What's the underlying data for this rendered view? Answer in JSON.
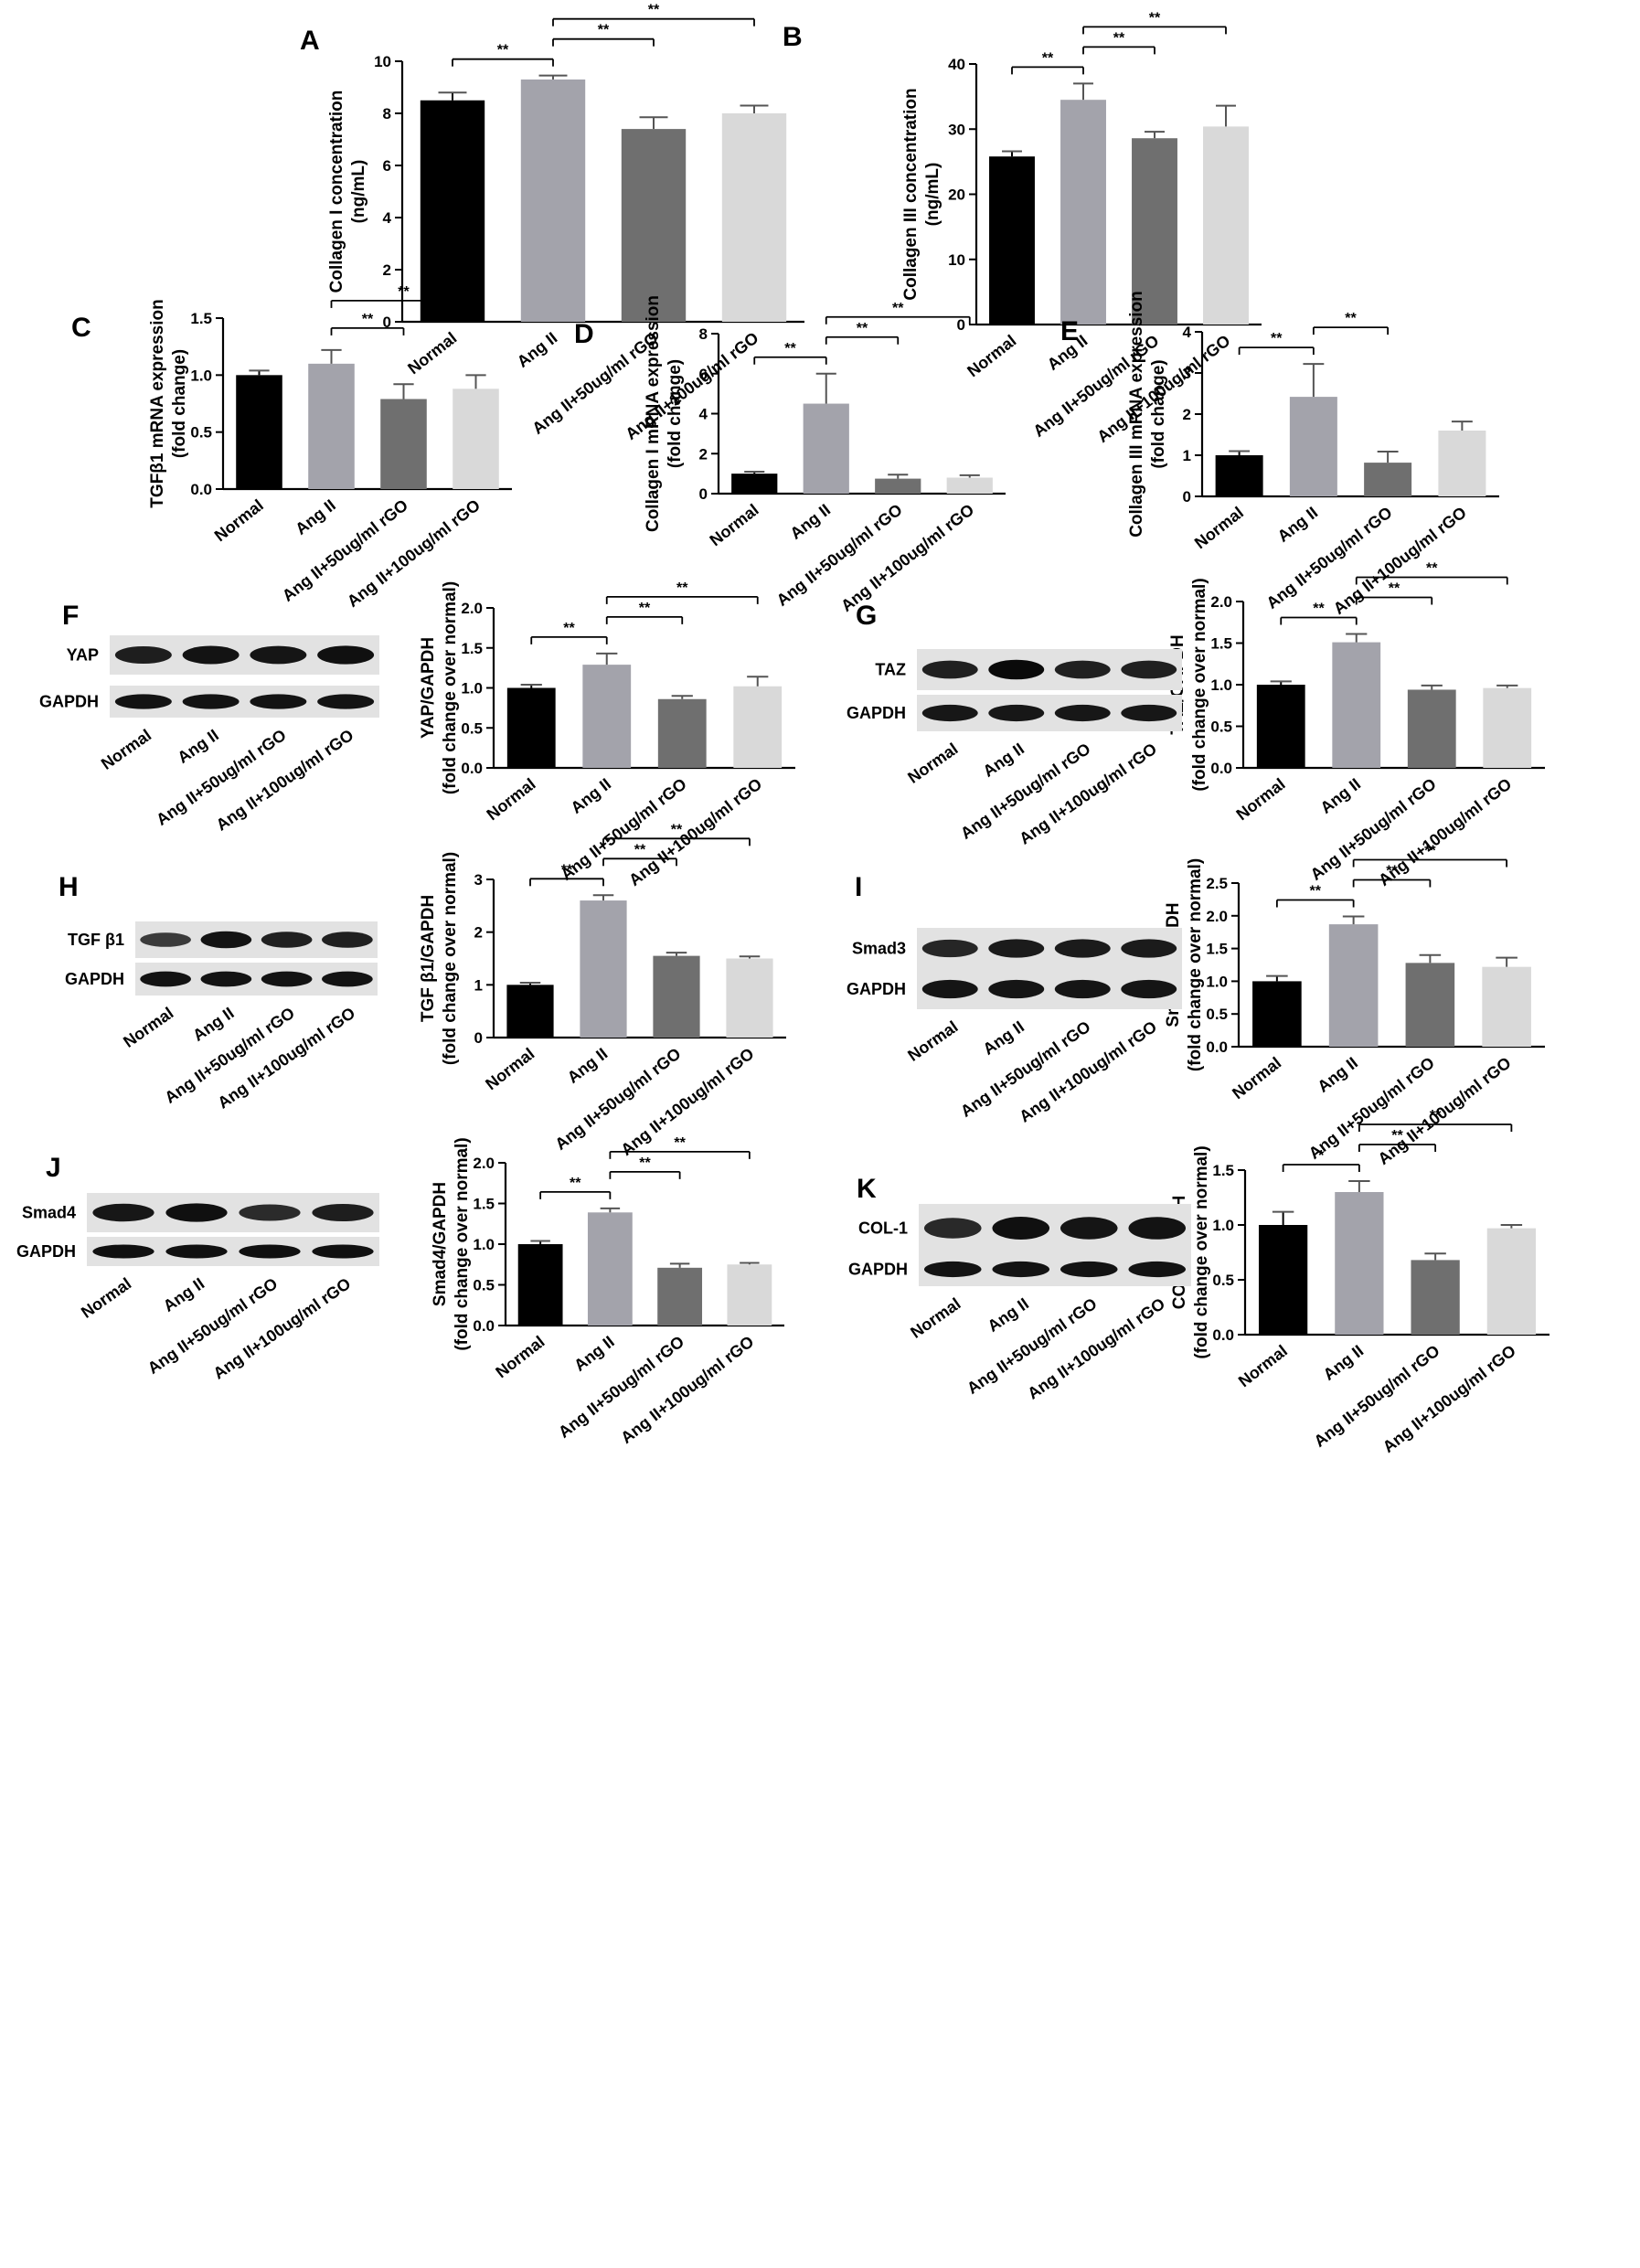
{
  "figure": {
    "categories": [
      "Normal",
      "Ang II",
      "Ang II+50ug/ml rGO",
      "Ang II+100ug/ml rGO"
    ],
    "blot_lane_labels": [
      "Normal",
      "Ang II",
      "Ang II+50ug/ml  rGO",
      "Ang II+100ug/ml  rGO"
    ],
    "bar_colors": [
      "#000000",
      "#a3a3ab",
      "#6f6f6f",
      "#d9d9d9"
    ]
  },
  "chart_data": [
    {
      "id": "A",
      "letter": "A",
      "type": "bar",
      "ylabel_lines": [
        "Collagen I concentration",
        "(ng/mL)"
      ],
      "ylim": [
        0,
        10
      ],
      "ticks": [
        0,
        2,
        4,
        6,
        8,
        10
      ],
      "tick_labels": [
        "0",
        "2",
        "4",
        "6",
        "8",
        "10"
      ],
      "values": [
        8.5,
        9.3,
        7.4,
        8.0
      ],
      "errors": [
        0.3,
        0.15,
        0.45,
        0.3
      ],
      "sig": [
        {
          "from": 0,
          "to": 1,
          "label": "**"
        },
        {
          "from": 1,
          "to": 2,
          "label": "**"
        },
        {
          "from": 1,
          "to": 3,
          "label": "**"
        }
      ]
    },
    {
      "id": "B",
      "letter": "B",
      "type": "bar",
      "ylabel_lines": [
        "Collagen III concentration",
        "(ng/mL)"
      ],
      "ylim": [
        0,
        40
      ],
      "ticks": [
        0,
        10,
        20,
        30,
        40
      ],
      "tick_labels": [
        "0",
        "10",
        "20",
        "30",
        "40"
      ],
      "values": [
        25.8,
        34.5,
        28.6,
        30.4
      ],
      "errors": [
        0.8,
        2.5,
        1.0,
        3.2
      ],
      "sig": [
        {
          "from": 0,
          "to": 1,
          "label": "**"
        },
        {
          "from": 1,
          "to": 2,
          "label": "**"
        },
        {
          "from": 1,
          "to": 3,
          "label": "**"
        }
      ]
    },
    {
      "id": "C",
      "letter": "C",
      "type": "bar",
      "ylabel_lines": [
        "TGFβ1 mRNA expression",
        "(fold change)"
      ],
      "ylim": [
        0,
        1.5
      ],
      "ticks": [
        0,
        0.5,
        1.0,
        1.5
      ],
      "tick_labels": [
        "0.0",
        "0.5",
        "1.0",
        "1.5"
      ],
      "values": [
        1.0,
        1.1,
        0.79,
        0.88
      ],
      "errors": [
        0.04,
        0.12,
        0.13,
        0.12
      ],
      "sig": [
        {
          "from": 1,
          "to": 2,
          "label": "**"
        },
        {
          "from": 1,
          "to": 3,
          "label": "**"
        }
      ]
    },
    {
      "id": "D",
      "letter": "D",
      "type": "bar",
      "ylabel_lines": [
        "Collagen I mRNA expression",
        "(fold change)"
      ],
      "ylim": [
        0,
        8
      ],
      "ticks": [
        0,
        2,
        4,
        6,
        8
      ],
      "tick_labels": [
        "0",
        "2",
        "4",
        "6",
        "8"
      ],
      "values": [
        1.0,
        4.5,
        0.75,
        0.8
      ],
      "errors": [
        0.1,
        1.5,
        0.2,
        0.12
      ],
      "sig": [
        {
          "from": 0,
          "to": 1,
          "label": "**"
        },
        {
          "from": 1,
          "to": 2,
          "label": "**"
        },
        {
          "from": 1,
          "to": 3,
          "label": "**"
        }
      ]
    },
    {
      "id": "E",
      "letter": "E",
      "type": "bar",
      "ylabel_lines": [
        "Collagen III mRNA expression",
        "(fold change)"
      ],
      "ylim": [
        0,
        4
      ],
      "ticks": [
        0,
        1,
        2,
        3,
        4
      ],
      "tick_labels": [
        "0",
        "1",
        "2",
        "3",
        "4"
      ],
      "values": [
        1.0,
        2.42,
        0.82,
        1.6
      ],
      "errors": [
        0.1,
        0.8,
        0.27,
        0.22
      ],
      "sig": [
        {
          "from": 0,
          "to": 1,
          "label": "**"
        },
        {
          "from": 1,
          "to": 2,
          "label": "**"
        }
      ]
    },
    {
      "id": "F",
      "letter": "F",
      "type": "bar",
      "ylabel_lines": [
        "YAP/GAPDH",
        "(fold change over normal)"
      ],
      "ylim": [
        0,
        2
      ],
      "ticks": [
        0,
        0.5,
        1.0,
        1.5,
        2.0
      ],
      "tick_labels": [
        "0.0",
        "0.5",
        "1.0",
        "1.5",
        "2.0"
      ],
      "values": [
        1.0,
        1.29,
        0.86,
        1.02
      ],
      "errors": [
        0.04,
        0.14,
        0.04,
        0.12
      ],
      "sig": [
        {
          "from": 0,
          "to": 1,
          "label": "**"
        },
        {
          "from": 1,
          "to": 2,
          "label": "**"
        },
        {
          "from": 1,
          "to": 3,
          "label": "**"
        }
      ],
      "blot": {
        "labels": [
          "YAP",
          "GAPDH"
        ],
        "band_strength": [
          [
            0.82,
            0.92,
            0.9,
            0.95
          ],
          [
            0.92,
            0.92,
            0.92,
            0.92
          ]
        ]
      }
    },
    {
      "id": "G",
      "letter": "G",
      "type": "bar",
      "ylabel_lines": [
        "TAZ/GAPDH",
        "(fold change over normal)"
      ],
      "ylim": [
        0,
        2
      ],
      "ticks": [
        0,
        0.5,
        1.0,
        1.5,
        2.0
      ],
      "tick_labels": [
        "0.0",
        "0.5",
        "1.0",
        "1.5",
        "2.0"
      ],
      "values": [
        1.0,
        1.51,
        0.94,
        0.96
      ],
      "errors": [
        0.04,
        0.1,
        0.05,
        0.03
      ],
      "sig": [
        {
          "from": 0,
          "to": 1,
          "label": "**"
        },
        {
          "from": 1,
          "to": 2,
          "label": "**"
        },
        {
          "from": 1,
          "to": 3,
          "label": "**"
        }
      ],
      "blot": {
        "labels": [
          "TAZ",
          "GAPDH"
        ],
        "band_strength": [
          [
            0.8,
            1.0,
            0.8,
            0.8
          ],
          [
            0.88,
            0.88,
            0.88,
            0.88
          ]
        ]
      }
    },
    {
      "id": "H",
      "letter": "H",
      "type": "bar",
      "ylabel_lines": [
        "TGF β1/GAPDH",
        "(fold change over normal)"
      ],
      "ylim": [
        0,
        3
      ],
      "ticks": [
        0,
        1,
        2,
        3
      ],
      "tick_labels": [
        "0",
        "1",
        "2",
        "3"
      ],
      "values": [
        1.0,
        2.6,
        1.55,
        1.5
      ],
      "errors": [
        0.04,
        0.1,
        0.06,
        0.04
      ],
      "sig": [
        {
          "from": 0,
          "to": 1,
          "label": "**"
        },
        {
          "from": 1,
          "to": 2,
          "label": "**"
        },
        {
          "from": 1,
          "to": 3,
          "label": "**"
        }
      ],
      "blot": {
        "labels": [
          "TGF β1",
          "GAPDH"
        ],
        "band_strength": [
          [
            0.55,
            0.92,
            0.8,
            0.8
          ],
          [
            0.92,
            0.92,
            0.92,
            0.92
          ]
        ]
      }
    },
    {
      "id": "I",
      "letter": "I",
      "type": "bar",
      "ylabel_lines": [
        "Smad3/GAPDH",
        "(fold change over normal)"
      ],
      "ylim": [
        0,
        2.5
      ],
      "ticks": [
        0,
        0.5,
        1.0,
        1.5,
        2.0,
        2.5
      ],
      "tick_labels": [
        "0.0",
        "0.5",
        "1.0",
        "1.5",
        "2.0",
        "2.5"
      ],
      "values": [
        1.0,
        1.87,
        1.28,
        1.22
      ],
      "errors": [
        0.08,
        0.12,
        0.12,
        0.14
      ],
      "sig": [
        {
          "from": 0,
          "to": 1,
          "label": "**"
        },
        {
          "from": 1,
          "to": 2,
          "label": "**"
        },
        {
          "from": 1,
          "to": 3,
          "label": "**"
        }
      ],
      "blot": {
        "labels": [
          "Smad3",
          "GAPDH"
        ],
        "band_strength": [
          [
            0.75,
            0.85,
            0.85,
            0.85
          ],
          [
            0.9,
            0.9,
            0.9,
            0.9
          ]
        ]
      }
    },
    {
      "id": "J",
      "letter": "J",
      "type": "bar",
      "ylabel_lines": [
        "Smad4/GAPDH",
        "(fold change over normal)"
      ],
      "ylim": [
        0,
        2
      ],
      "ticks": [
        0,
        0.5,
        1.0,
        1.5,
        2.0
      ],
      "tick_labels": [
        "0.0",
        "0.5",
        "1.0",
        "1.5",
        "2.0"
      ],
      "values": [
        1.0,
        1.39,
        0.71,
        0.75
      ],
      "errors": [
        0.04,
        0.05,
        0.05,
        0.02
      ],
      "sig": [
        {
          "from": 0,
          "to": 1,
          "label": "**"
        },
        {
          "from": 1,
          "to": 2,
          "label": "**"
        },
        {
          "from": 1,
          "to": 3,
          "label": "**"
        }
      ],
      "blot": {
        "labels": [
          "Smad4",
          "GAPDH"
        ],
        "band_strength": [
          [
            0.88,
            0.95,
            0.7,
            0.82
          ],
          [
            0.95,
            0.95,
            0.95,
            0.95
          ]
        ]
      }
    },
    {
      "id": "K",
      "letter": "K",
      "type": "bar",
      "ylabel_lines": [
        "COL1/GAPDH",
        "(fold change over normal)"
      ],
      "ylim": [
        0,
        1.5
      ],
      "ticks": [
        0,
        0.5,
        1.0,
        1.5
      ],
      "tick_labels": [
        "0.0",
        "0.5",
        "1.0",
        "1.5"
      ],
      "values": [
        1.0,
        1.3,
        0.68,
        0.97
      ],
      "errors": [
        0.12,
        0.1,
        0.06,
        0.03
      ],
      "sig": [
        {
          "from": 0,
          "to": 1,
          "label": "*"
        },
        {
          "from": 1,
          "to": 2,
          "label": "**"
        },
        {
          "from": 1,
          "to": 3,
          "label": "**"
        }
      ],
      "blot": {
        "labels": [
          "COL-1",
          "GAPDH"
        ],
        "band_strength": [
          [
            0.72,
            0.95,
            0.9,
            0.92
          ],
          [
            0.92,
            0.92,
            0.92,
            0.92
          ]
        ]
      }
    }
  ]
}
